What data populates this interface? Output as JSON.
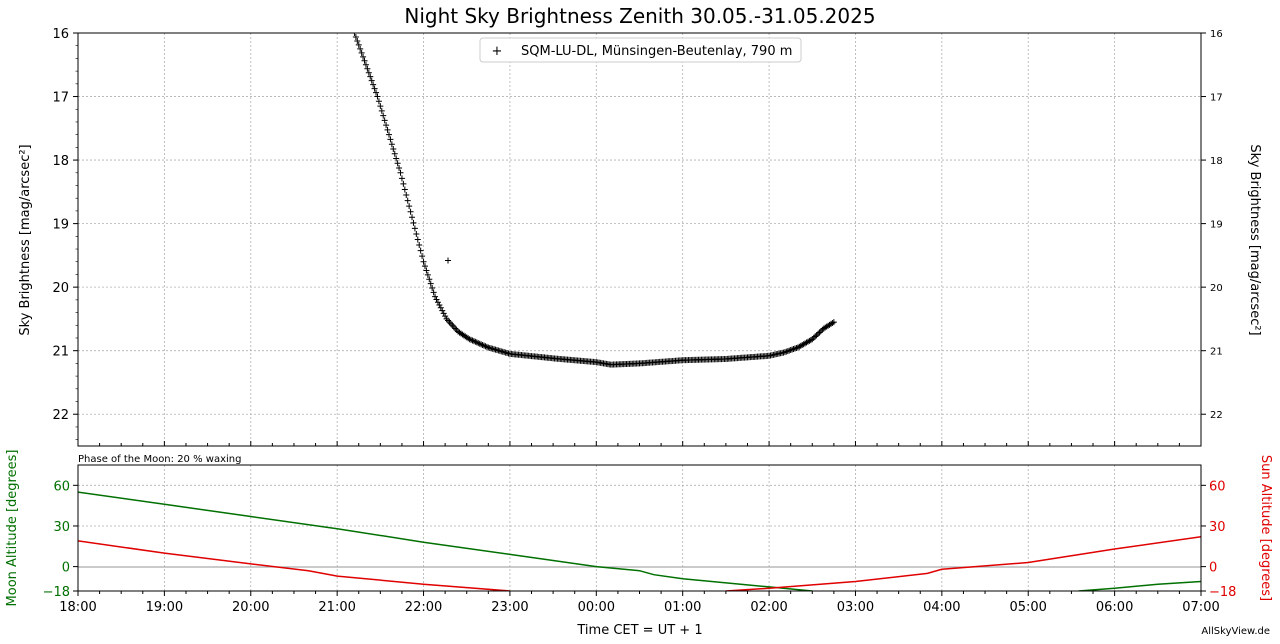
{
  "figure": {
    "title": "Night Sky Brightness Zenith 30.05.-31.05.2025",
    "footer": "AllSkyView.de"
  },
  "chart_data": [
    {
      "type": "scatter",
      "ylabel_left": "Sky Brightness [mag/arcsec²]",
      "ylabel_right": "Sky Brightness [mag/arcsec²]",
      "ylim": [
        22.5,
        16
      ],
      "y_inverted": true,
      "y_ticks": [
        "16",
        "17",
        "18",
        "19",
        "20",
        "21",
        "22"
      ],
      "xlim": [
        "18:00",
        "07:00"
      ],
      "grid": true,
      "legend": {
        "label": "SQM-LU-DL, Münsingen-Beutenlay, 790 m",
        "marker": "+",
        "placement": "top-center"
      },
      "series": [
        {
          "name": "SQM-LU-DL, Münsingen-Beutenlay, 790 m",
          "marker": "+",
          "color": "#000000",
          "points": [
            [
              "21:12",
              16.0
            ],
            [
              "21:20",
              16.5
            ],
            [
              "21:28",
              17.0
            ],
            [
              "21:36",
              17.6
            ],
            [
              "21:44",
              18.2
            ],
            [
              "21:52",
              18.9
            ],
            [
              "22:00",
              19.6
            ],
            [
              "22:08",
              20.15
            ],
            [
              "22:16",
              20.5
            ],
            [
              "22:24",
              20.7
            ],
            [
              "22:32",
              20.82
            ],
            [
              "22:45",
              20.95
            ],
            [
              "23:00",
              21.05
            ],
            [
              "23:30",
              21.12
            ],
            [
              "00:00",
              21.18
            ],
            [
              "00:10",
              21.22
            ],
            [
              "00:30",
              21.2
            ],
            [
              "01:00",
              21.15
            ],
            [
              "01:30",
              21.13
            ],
            [
              "02:00",
              21.08
            ],
            [
              "02:10",
              21.03
            ],
            [
              "02:20",
              20.95
            ],
            [
              "02:30",
              20.82
            ],
            [
              "02:38",
              20.65
            ],
            [
              "02:45",
              20.55
            ]
          ],
          "outliers": [
            [
              "22:17",
              19.58
            ]
          ]
        }
      ]
    },
    {
      "type": "line",
      "annotation": "Phase of the Moon: 20 % waxing",
      "xlabel": "Time CET = UT + 1",
      "ylabel_left": "Moon Altitude [degrees]",
      "ylabel_right": "Sun Altitude [degrees]",
      "ylim": [
        -18,
        75
      ],
      "y_ticks": [
        "60",
        "30",
        "0",
        "−18"
      ],
      "x_ticks": [
        "18:00",
        "19:00",
        "20:00",
        "21:00",
        "22:00",
        "23:00",
        "00:00",
        "01:00",
        "02:00",
        "03:00",
        "04:00",
        "05:00",
        "06:00",
        "07:00"
      ],
      "reference_line": 0,
      "grid": true,
      "series": [
        {
          "name": "Moon Altitude",
          "color": "#007000",
          "points": [
            [
              "18:00",
              55
            ],
            [
              "19:00",
              46
            ],
            [
              "20:00",
              37
            ],
            [
              "21:00",
              28
            ],
            [
              "22:00",
              18
            ],
            [
              "23:00",
              9
            ],
            [
              "00:00",
              0
            ],
            [
              "00:30",
              -3
            ],
            [
              "00:40",
              -6
            ],
            [
              "01:00",
              -9
            ],
            [
              "02:00",
              -15
            ],
            [
              "02:30",
              -18
            ]
          ],
          "points_after_gap": [
            [
              "05:35",
              -18
            ],
            [
              "06:00",
              -16
            ],
            [
              "06:30",
              -13
            ],
            [
              "07:00",
              -11
            ]
          ]
        },
        {
          "name": "Sun Altitude",
          "color": "#e00000",
          "points": [
            [
              "18:00",
              19
            ],
            [
              "19:00",
              10
            ],
            [
              "20:00",
              2
            ],
            [
              "20:40",
              -3
            ],
            [
              "20:55",
              -6
            ],
            [
              "21:00",
              -7
            ],
            [
              "22:00",
              -13
            ],
            [
              "23:00",
              -18
            ]
          ],
          "points_after_gap": [
            [
              "01:30",
              -18
            ],
            [
              "02:00",
              -16
            ],
            [
              "03:00",
              -11
            ],
            [
              "03:50",
              -5
            ],
            [
              "04:00",
              -2
            ],
            [
              "05:00",
              3
            ],
            [
              "06:00",
              13
            ],
            [
              "07:00",
              22
            ]
          ]
        }
      ]
    }
  ]
}
